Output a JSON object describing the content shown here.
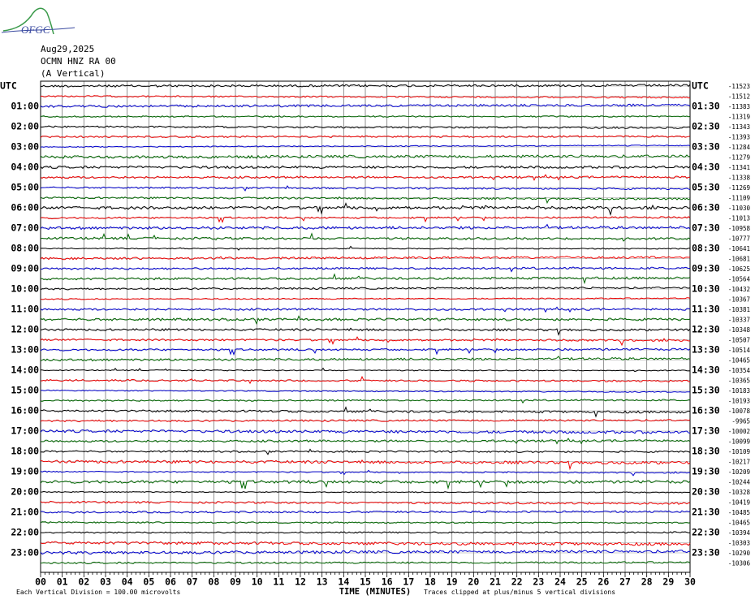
{
  "logo": "OFGC",
  "header": {
    "date": "Aug29,2025",
    "station": "OCMN HNZ RA 00",
    "component": "(A Vertical)"
  },
  "left_labels": [
    "UTC",
    "01:00",
    "02:00",
    "03:00",
    "04:00",
    "05:00",
    "06:00",
    "07:00",
    "08:00",
    "09:00",
    "10:00",
    "11:00",
    "12:00",
    "13:00",
    "14:00",
    "15:00",
    "16:00",
    "17:00",
    "18:00",
    "19:00",
    "20:00",
    "21:00",
    "22:00",
    "23:00"
  ],
  "right_labels": [
    "UTC",
    "01:30",
    "02:30",
    "03:30",
    "04:30",
    "05:30",
    "06:30",
    "07:30",
    "08:30",
    "09:30",
    "10:30",
    "11:30",
    "12:30",
    "13:30",
    "14:30",
    "15:30",
    "16:30",
    "17:30",
    "18:30",
    "19:30",
    "20:30",
    "21:30",
    "22:30",
    "23:30"
  ],
  "offsets": [
    "-11523",
    "-11512",
    "-11383",
    "-11319",
    "-11343",
    "-11393",
    "-11284",
    "-11279",
    "-11341",
    "-11338",
    "-11269",
    "-11109",
    "-11030",
    "-11013",
    "-10958",
    "-10777",
    "-10641",
    "-10681",
    "-10625",
    "-10564",
    "-10432",
    "-10367",
    "-10381",
    "-10337",
    "-10348",
    "-10507",
    "-10514",
    "-10465",
    "-10354",
    "-10365",
    "-10183",
    "-10193",
    "-10078",
    "-9965",
    "-10002",
    "-10099",
    "-10109",
    "-10217",
    "-10209",
    "-10244",
    "-10328",
    "-10419",
    "-10485",
    "-10465",
    "-10394",
    "-10303",
    "-10290",
    "-10306"
  ],
  "x_axis": {
    "ticks": [
      "00",
      "01",
      "02",
      "03",
      "04",
      "05",
      "06",
      "07",
      "08",
      "09",
      "10",
      "11",
      "12",
      "13",
      "14",
      "15",
      "16",
      "17",
      "18",
      "19",
      "20",
      "21",
      "22",
      "23",
      "24",
      "25",
      "26",
      "27",
      "28",
      "29",
      "30"
    ],
    "label": "TIME (MINUTES)"
  },
  "footer": {
    "scale": "Each Vertical Division =  100.00 microvolts",
    "clip": "Traces clipped at plus/minus 5 vertical divisions"
  }
}
